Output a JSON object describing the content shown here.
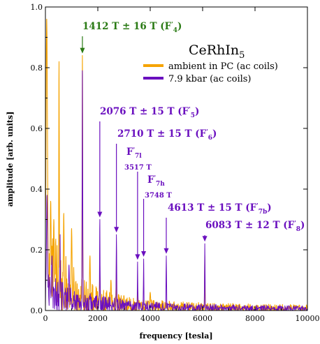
{
  "chart_data": {
    "type": "line",
    "title": "",
    "compound_label": "CeRhIn",
    "compound_sub": "5",
    "xlabel": "frequency [tesla]",
    "ylabel": "amplitude [arb. units]",
    "xlim": [
      0,
      10000
    ],
    "ylim": [
      0,
      1.0
    ],
    "x_ticks": [
      0,
      2000,
      4000,
      6000,
      8000,
      10000
    ],
    "y_ticks": [
      0.0,
      0.2,
      0.4,
      0.6,
      0.8,
      1.0
    ],
    "x_tick_labels": [
      "0",
      "2000",
      "4000",
      "6000",
      "8000",
      "10000"
    ],
    "y_tick_labels": [
      "0.0",
      "0.2",
      "0.4",
      "0.6",
      "0.8",
      "1.0"
    ],
    "grid": false,
    "legend_position": "top-right",
    "colors": {
      "ambient": "#f5a300",
      "pressure": "#6a0fbf",
      "green": "#2a7a14"
    },
    "series": [
      {
        "name": "ambient in PC (ac coils)",
        "color": "#f5a300",
        "peaks": [
          {
            "x": 50,
            "y": 0.96,
            "w": 40
          },
          {
            "x": 200,
            "y": 0.36,
            "w": 30
          },
          {
            "x": 320,
            "y": 0.3,
            "w": 25
          },
          {
            "x": 520,
            "y": 0.82,
            "w": 14
          },
          {
            "x": 700,
            "y": 0.32,
            "w": 25
          },
          {
            "x": 1000,
            "y": 0.27,
            "w": 25
          },
          {
            "x": 1412,
            "y": 0.84,
            "w": 14
          },
          {
            "x": 1700,
            "y": 0.18,
            "w": 25
          },
          {
            "x": 2076,
            "y": 0.12,
            "w": 20
          },
          {
            "x": 2500,
            "y": 0.1,
            "w": 25
          },
          {
            "x": 2710,
            "y": 0.2,
            "w": 12
          },
          {
            "x": 3517,
            "y": 0.08,
            "w": 15
          },
          {
            "x": 4000,
            "y": 0.06,
            "w": 25
          },
          {
            "x": 6083,
            "y": 0.18,
            "w": 12
          }
        ]
      },
      {
        "name": "7.9 kbar (ac coils)",
        "color": "#6a0fbf",
        "peaks": [
          {
            "x": 60,
            "y": 0.38,
            "w": 30
          },
          {
            "x": 250,
            "y": 0.18,
            "w": 25
          },
          {
            "x": 560,
            "y": 0.25,
            "w": 15
          },
          {
            "x": 900,
            "y": 0.15,
            "w": 25
          },
          {
            "x": 1412,
            "y": 0.79,
            "w": 14
          },
          {
            "x": 2076,
            "y": 0.3,
            "w": 12
          },
          {
            "x": 2710,
            "y": 0.25,
            "w": 12
          },
          {
            "x": 3517,
            "y": 0.16,
            "w": 12
          },
          {
            "x": 3748,
            "y": 0.17,
            "w": 12
          },
          {
            "x": 4613,
            "y": 0.18,
            "w": 12
          },
          {
            "x": 6083,
            "y": 0.22,
            "w": 12
          }
        ]
      }
    ],
    "annotations": [
      {
        "id": "f4",
        "x": 1412,
        "main": "1412 T ± 16 T (F",
        "sub": "4",
        "close": ")",
        "color": "#2a7a14"
      },
      {
        "id": "f5",
        "x": 2076,
        "main": "2076 T ± 15 T (F",
        "sub": "5",
        "close": ")",
        "color": "#6a0fbf"
      },
      {
        "id": "f6",
        "x": 2710,
        "main": "2710 T ± 15 T (F",
        "sub": "6",
        "close": ")",
        "color": "#6a0fbf"
      },
      {
        "id": "f7l",
        "x": 3517,
        "main": "F",
        "sub": "7l",
        "close": "",
        "value": "3517 T",
        "color": "#6a0fbf"
      },
      {
        "id": "f7h",
        "x": 3748,
        "main": "F",
        "sub": "7h",
        "close": "",
        "value": "3748 T",
        "color": "#6a0fbf"
      },
      {
        "id": "f7b",
        "x": 4613,
        "main": "4613 T ± 15 T (F",
        "sub": "7b",
        "close": ")",
        "color": "#6a0fbf"
      },
      {
        "id": "f8",
        "x": 6083,
        "main": "6083 T ± 12 T (F",
        "sub": "8",
        "close": ")",
        "color": "#6a0fbf"
      }
    ]
  }
}
